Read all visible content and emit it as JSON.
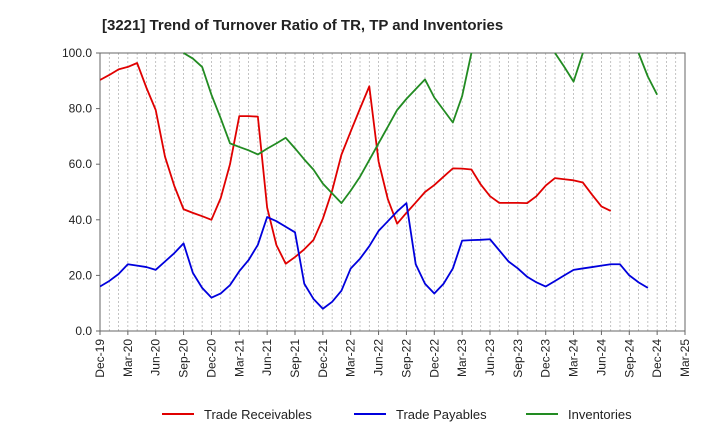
{
  "chart_data": {
    "type": "line",
    "title": "[3221]  Trend of Turnover Ratio of TR, TP and Inventories",
    "xlabel": "",
    "ylabel": "",
    "ylim": [
      0,
      100
    ],
    "y_ticks": [
      "0.0",
      "20.0",
      "40.0",
      "60.0",
      "80.0",
      "100.0"
    ],
    "x_ticks": [
      "Dec-19",
      "Mar-20",
      "Jun-20",
      "Sep-20",
      "Dec-20",
      "Mar-21",
      "Jun-21",
      "Sep-21",
      "Dec-21",
      "Mar-22",
      "Jun-22",
      "Sep-22",
      "Dec-22",
      "Mar-23",
      "Jun-23",
      "Sep-23",
      "Dec-23",
      "Mar-24",
      "Jun-24",
      "Sep-24",
      "Dec-24",
      "Mar-25"
    ],
    "grid": "vertical dashed",
    "legend_position": "bottom",
    "series": [
      {
        "name": "Trade Receivables",
        "color": "#e00000",
        "values": [
          90.3,
          92.1,
          94.1,
          95.0,
          96.4,
          87.5,
          79.5,
          62.7,
          52.2,
          43.8,
          42.5,
          41.3,
          40.0,
          47.8,
          60.0,
          77.3,
          77.3,
          77.1,
          44.4,
          30.9,
          24.2,
          26.6,
          29.4,
          32.8,
          40.4,
          50.5,
          63.4,
          71.8,
          80.0,
          88.0,
          61.0,
          47.4,
          38.6,
          42.5,
          46.2,
          50.0,
          52.5,
          55.5,
          58.5,
          58.4,
          58.1,
          52.7,
          48.5,
          46.1,
          46.1,
          46.1,
          46.0,
          48.5,
          52.3,
          55.0,
          54.6,
          54.2,
          53.4,
          49.0,
          44.8,
          43.2
        ]
      },
      {
        "name": "Trade Payables",
        "color": "#0000dd",
        "values": [
          16.0,
          18.0,
          20.5,
          24.0,
          23.5,
          23.0,
          22.0,
          25.0,
          28.0,
          31.5,
          20.9,
          15.5,
          12.0,
          13.5,
          16.5,
          21.5,
          25.5,
          31.0,
          41.0,
          39.5,
          37.5,
          35.5,
          17.0,
          11.5,
          8.0,
          10.5,
          14.5,
          22.5,
          26.0,
          30.5,
          36.0,
          39.5,
          43.0,
          46.0,
          24.0,
          17.0,
          13.5,
          17.0,
          22.5,
          32.5,
          32.7,
          32.8,
          33.0,
          29.0,
          25.0,
          22.5,
          19.5,
          17.5,
          16.0,
          18.0,
          20.0,
          22.0,
          22.5,
          23.0,
          23.5,
          24.0,
          24.0,
          20.0,
          17.5,
          15.5
        ]
      },
      {
        "name": "Inventories",
        "color": "#228b22",
        "values": [
          null,
          null,
          null,
          null,
          null,
          null,
          null,
          null,
          null,
          100.0,
          98.0,
          95.0,
          85.0,
          76.5,
          67.5,
          66.2,
          65.0,
          63.5,
          65.6,
          67.5,
          69.5,
          65.7,
          61.7,
          58.0,
          53.0,
          49.5,
          46.0,
          50.5,
          55.5,
          61.5,
          67.5,
          73.5,
          79.5,
          83.5,
          87.0,
          90.5,
          84.0,
          79.5,
          75.0,
          84.5,
          100.0,
          null,
          null,
          null,
          null,
          null,
          null,
          null,
          null,
          100.0,
          95.0,
          89.7,
          100.0,
          null,
          null,
          null,
          null,
          null,
          100.0,
          91.5,
          85.0
        ]
      }
    ]
  }
}
